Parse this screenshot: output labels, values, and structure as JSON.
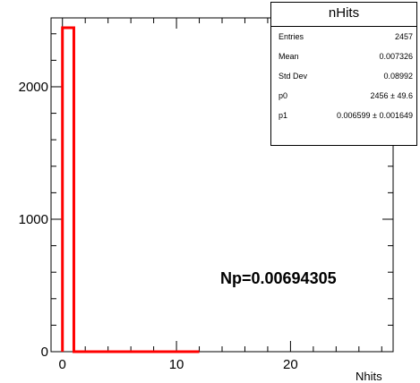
{
  "chart_data": {
    "type": "histogram",
    "title": "nHits",
    "xlabel": "Nhits",
    "ylabel": "",
    "xlim": [
      -1,
      29
    ],
    "ylim": [
      0,
      2520
    ],
    "x_ticks": [
      0,
      10,
      20
    ],
    "y_ticks": [
      0,
      1000,
      2000
    ],
    "bins": [
      {
        "x0": 0,
        "x1": 1,
        "value": 2446
      },
      {
        "x0": 1,
        "x1": 12,
        "value": 0
      }
    ],
    "line_color": "#ff0000",
    "grid": false,
    "annotation": "Np=0.00694305"
  },
  "stats": {
    "title": "nHits",
    "rows": [
      {
        "label": "Entries",
        "value": "2457"
      },
      {
        "label": "Mean",
        "value": "0.007326"
      },
      {
        "label": "Std Dev",
        "value": "0.08992"
      },
      {
        "label": "p0",
        "value": "2456 ± 49.6"
      },
      {
        "label": "p1",
        "value": "0.006599 ± 0.001649"
      }
    ]
  }
}
